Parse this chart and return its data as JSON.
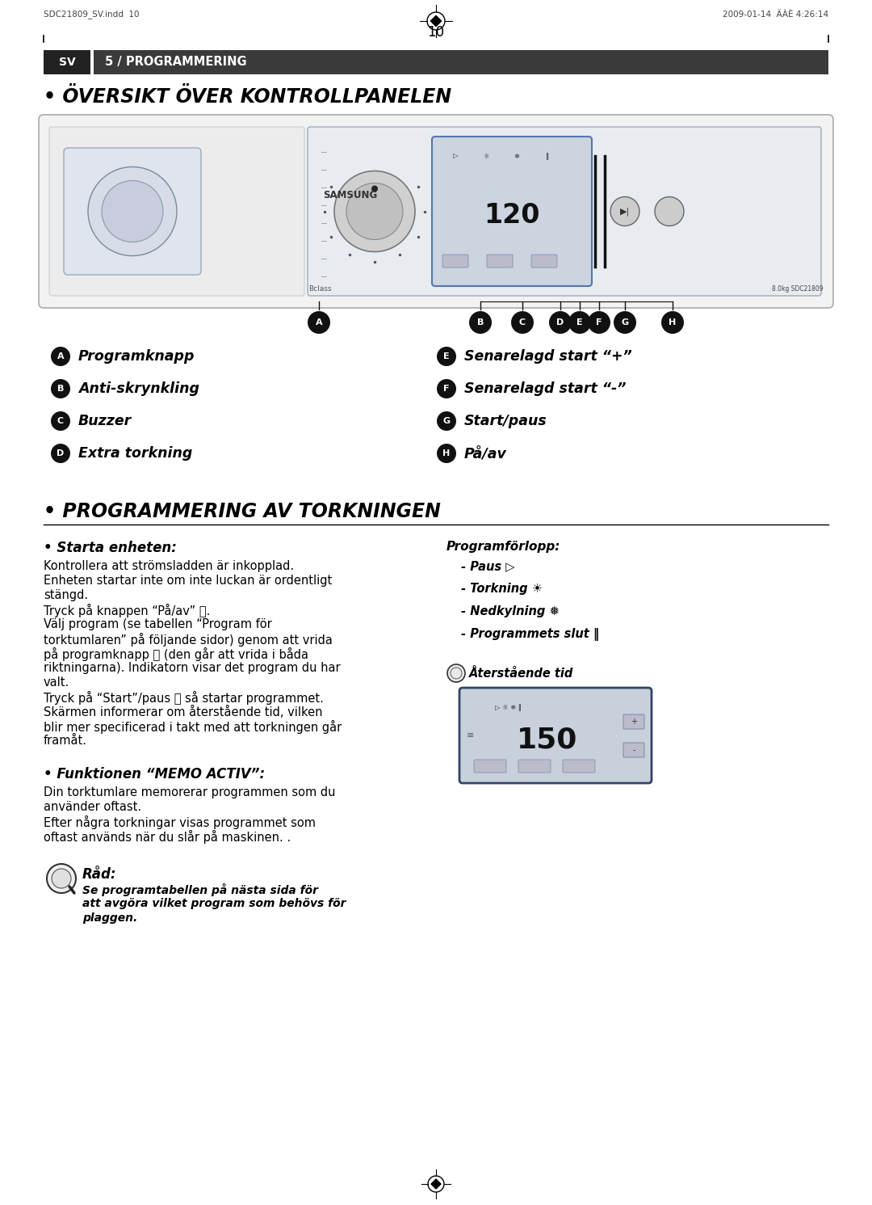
{
  "page_bg": "#ffffff",
  "header_bg": "#3a3a3a",
  "header_sv_text": "SV",
  "header_title": "5 / PROGRAMMERING",
  "section1_title": "• ÖVERSIKT ÖVER KONTROLLPANELEN",
  "section2_title": "• PROGRAMMERING AV TORKNINGEN",
  "subsection_starta": "• Starta enheten:",
  "subsection_memo": "• Funktionen “MEMO ACTIV”:",
  "rad_title": "Råd:",
  "left_labels": [
    [
      "A",
      "Programknapp"
    ],
    [
      "B",
      "Anti-skrynkling"
    ],
    [
      "C",
      "Buzzer"
    ],
    [
      "D",
      "Extra torkning"
    ]
  ],
  "right_labels": [
    [
      "E",
      "Senarelagd start “+”"
    ],
    [
      "F",
      "Senarelagd start “-”"
    ],
    [
      "G",
      "Start/paus"
    ],
    [
      "H",
      "På/av"
    ]
  ],
  "programforlopp_title": "Programförlopp:",
  "programforlopp_items": [
    "- Paus ▷",
    "- Torkning ☀",
    "- Nedkylning ❅",
    "- Programmets slut ‖"
  ],
  "aterstående_label": "Återstående tid",
  "starta_lines": [
    "Kontrollera att strömsladden är inkopplad.",
    "Enheten startar inte om inte luckan är ordentligt",
    "stängd.",
    "Tryck på knappen “På/av” Ⓗ.",
    "Välj program (se tabellen “Program för",
    "torktumlaren” på följande sidor) genom att vrida",
    "på programknapp Ⓐ (den går att vrida i båda",
    "riktningarna). Indikatorn visar det program du har",
    "valt.",
    "Tryck på “Start”/paus Ⓖ så startar programmet.",
    "Skärmen informerar om återstående tid, vilken",
    "blir mer specificerad i takt med att torkningen går",
    "framåt."
  ],
  "memo_lines": [
    "Din torktumlare memorerar programmen som du",
    "använder oftast.",
    "Efter några torkningar visas programmet som",
    "oftast används när du slår på maskinen. ."
  ],
  "rad_lines": [
    "Se programtabellen på nästa sida för",
    "att avgöra vilket program som behövs för",
    "plaggen."
  ],
  "footer_left": "SDC21809_SV.indd  10",
  "footer_right": "2009-01-14  ÄÀÈ 4:26:14",
  "page_number": "10"
}
